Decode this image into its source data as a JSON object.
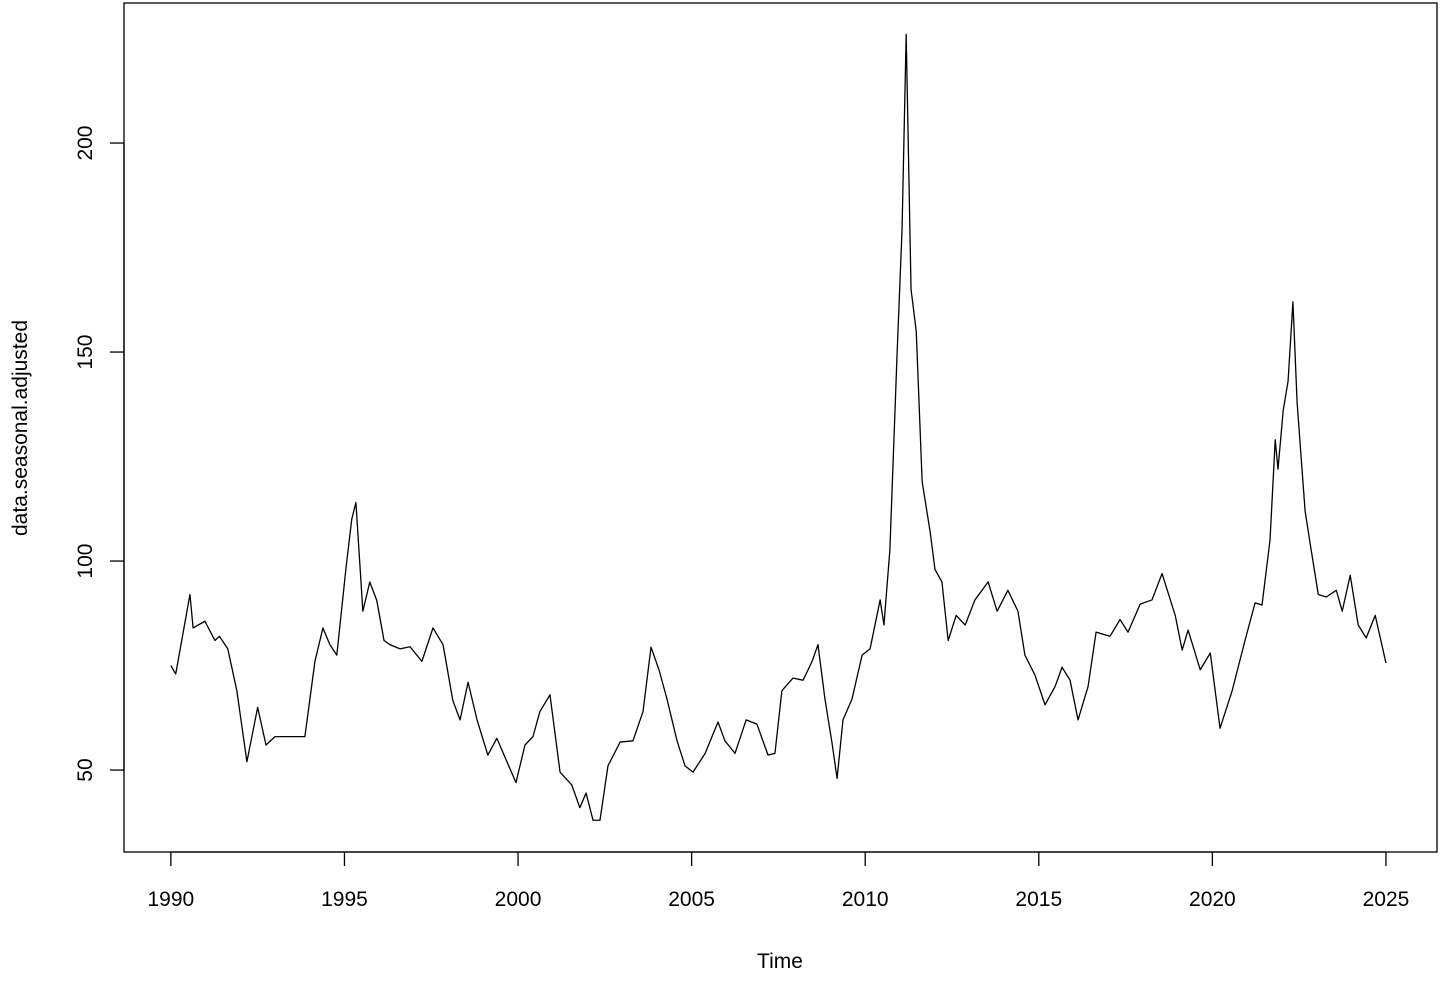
{
  "chart_data": {
    "type": "line",
    "x_label": "Time",
    "y_label": "data.seasonal.adjusted",
    "xlim": [
      1988.65,
      2026.47
    ],
    "ylim": [
      30.4,
      233.5
    ],
    "xticks": [
      1990,
      1995,
      2000,
      2005,
      2010,
      2015,
      2020,
      2025
    ],
    "yticks": [
      50,
      100,
      150,
      200
    ],
    "grid": false,
    "series": [
      {
        "color": "#000000",
        "x": [
          1990.0,
          1990.14,
          1990.55,
          1990.64,
          1990.98,
          1991.27,
          1991.4,
          1991.64,
          1991.9,
          1992.19,
          1992.5,
          1992.74,
          1993.0,
          1993.57,
          1993.86,
          1994.15,
          1994.38,
          1994.58,
          1994.78,
          1995.04,
          1995.21,
          1995.33,
          1995.53,
          1995.73,
          1995.93,
          1996.14,
          1996.31,
          1996.6,
          1996.89,
          1997.23,
          1997.55,
          1997.84,
          1998.12,
          1998.33,
          1998.56,
          1998.82,
          1999.13,
          1999.39,
          1999.68,
          1999.94,
          2000.2,
          2000.43,
          2000.63,
          2000.92,
          2001.21,
          2001.55,
          2001.78,
          2001.96,
          2002.16,
          2002.36,
          2002.59,
          2002.94,
          2003.31,
          2003.6,
          2003.83,
          2004.06,
          2004.29,
          2004.58,
          2004.81,
          2005.04,
          2005.39,
          2005.76,
          2005.96,
          2006.25,
          2006.57,
          2006.88,
          2007.2,
          2007.4,
          2007.6,
          2007.92,
          2008.21,
          2008.47,
          2008.64,
          2008.84,
          2009.04,
          2009.19,
          2009.36,
          2009.62,
          2009.91,
          2010.14,
          2010.43,
          2010.54,
          2010.71,
          2010.92,
          2011.06,
          2011.18,
          2011.32,
          2011.47,
          2011.64,
          2011.87,
          2012.01,
          2012.21,
          2012.39,
          2012.62,
          2012.88,
          2013.16,
          2013.54,
          2013.8,
          2014.11,
          2014.4,
          2014.6,
          2014.89,
          2015.18,
          2015.47,
          2015.67,
          2015.9,
          2016.13,
          2016.42,
          2016.65,
          2017.05,
          2017.34,
          2017.57,
          2017.92,
          2018.26,
          2018.55,
          2018.93,
          2019.13,
          2019.3,
          2019.65,
          2019.94,
          2020.22,
          2020.57,
          2020.94,
          2021.23,
          2021.43,
          2021.66,
          2021.81,
          2021.89,
          2022.04,
          2022.18,
          2022.32,
          2022.44,
          2022.67,
          2022.82,
          2023.05,
          2023.28,
          2023.57,
          2023.74,
          2023.97,
          2024.2,
          2024.43,
          2024.69,
          2025.0
        ],
        "values": [
          75,
          73,
          92,
          84,
          85.6,
          81,
          82,
          79,
          69,
          52,
          65,
          56,
          58,
          58,
          58,
          76,
          84,
          80,
          77.5,
          98,
          110,
          114,
          88,
          95,
          90.6,
          81,
          80,
          79,
          79.5,
          76,
          84,
          80,
          66.7,
          62,
          71,
          62,
          53.6,
          57.6,
          52,
          47,
          56,
          58,
          64,
          68,
          49.5,
          46.4,
          41,
          44.5,
          38,
          38,
          51,
          56.7,
          57,
          64,
          79.4,
          74,
          67,
          57,
          51,
          49.5,
          54,
          61.5,
          57,
          54,
          62,
          61,
          53.6,
          54,
          69,
          72,
          71.5,
          76,
          80,
          67,
          56.7,
          48,
          62,
          67,
          77.5,
          79,
          90.7,
          84.7,
          102.6,
          150,
          179,
          226,
          165,
          155,
          119,
          107,
          98,
          95,
          81,
          87,
          84.7,
          90.7,
          95,
          88,
          93,
          88,
          77.5,
          72.7,
          65.6,
          70,
          74.6,
          71.5,
          62,
          70,
          83,
          82,
          86,
          83,
          89.7,
          90.7,
          97,
          87,
          78.7,
          83.5,
          74,
          78,
          60,
          69,
          81,
          90,
          89.5,
          105,
          129,
          122,
          136,
          143,
          162,
          138,
          112,
          104,
          92,
          91.4,
          93,
          88,
          96.6,
          84.7,
          81.6,
          87,
          75.6
        ]
      }
    ]
  }
}
